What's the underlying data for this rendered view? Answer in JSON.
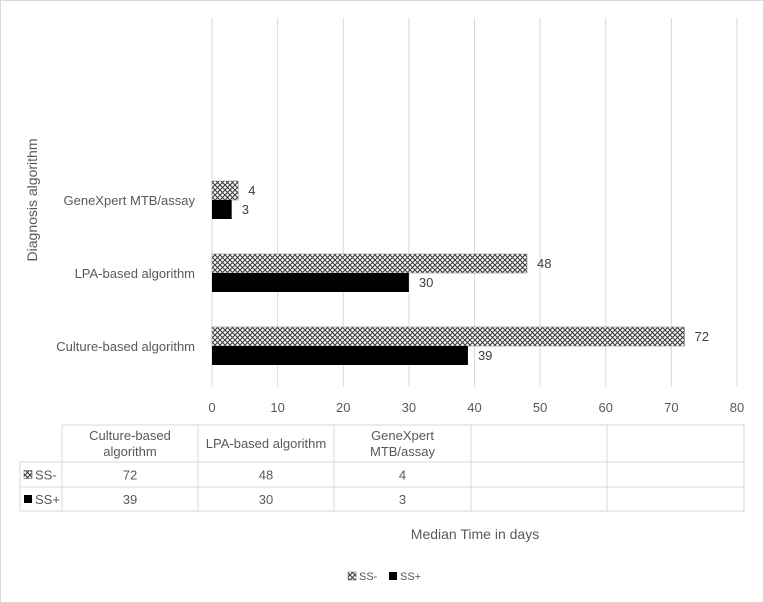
{
  "chart_data": {
    "type": "bar",
    "orientation": "horizontal",
    "categories": [
      "Culture-based algorithm",
      "LPA-based algorithm",
      "GeneXpert MTB/assay"
    ],
    "table_headers": [
      [
        "Culture-based",
        "algorithm"
      ],
      [
        "LPA-based algorithm"
      ],
      [
        "GeneXpert",
        "MTB/assay"
      ]
    ],
    "series": [
      {
        "name": "SS-",
        "values": [
          72,
          48,
          4
        ],
        "pattern": "crosshatch",
        "color": "#7f7f7f"
      },
      {
        "name": "SS+",
        "values": [
          39,
          30,
          3
        ],
        "pattern": "solid",
        "color": "#000000"
      }
    ],
    "xlabel": "Median Time in days",
    "ylabel": "Diagnosis algorithm",
    "xlim": [
      0,
      80
    ],
    "xticks": [
      0,
      10,
      20,
      30,
      40,
      50,
      60,
      70,
      80
    ],
    "grid": true,
    "legend_position": "bottom",
    "data_table": true
  }
}
